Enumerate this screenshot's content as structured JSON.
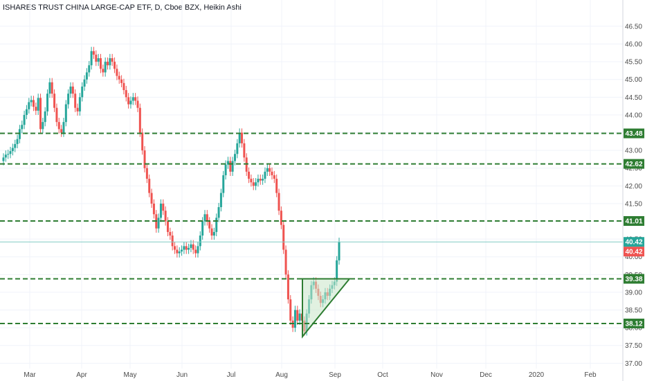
{
  "chart_data": {
    "type": "candlestick",
    "title": "ISHARES TRUST CHINA LARGE-CAP ETF, D, Cboe BZX, Heikin Ashi",
    "ylim": [
      36.85,
      46.85
    ],
    "y_ticks": [
      37.0,
      37.5,
      38.0,
      38.5,
      39.0,
      39.5,
      40.0,
      40.5,
      41.0,
      41.5,
      42.0,
      42.5,
      43.0,
      43.5,
      44.0,
      44.5,
      45.0,
      45.5,
      46.0,
      46.5
    ],
    "x_ticks": [
      "Mar",
      "Apr",
      "May",
      "Jun",
      "Jul",
      "Aug",
      "Sep",
      "Oct",
      "Nov",
      "Dec",
      "2020",
      "Feb"
    ],
    "colors": {
      "up": "#26a69a",
      "down": "#ef5350",
      "level_line": "#2e7d32",
      "price_line": "#80cbc4",
      "triangle": "#2e7d32",
      "triangle_fill": "#c8e6c9"
    },
    "levels": [
      43.48,
      42.62,
      41.01,
      39.38,
      38.12
    ],
    "level_labels": [
      "43.48",
      "42.62",
      "41.01",
      "39.38",
      "38.12"
    ],
    "last_price": 40.42,
    "last_price_label": "40.42",
    "last_price_label_2": "40.42",
    "triangle": [
      [
        "2019-08-12",
        39.38
      ],
      [
        "2019-09-05",
        39.38
      ],
      [
        "2019-08-13",
        37.75
      ]
    ],
    "close": [
      42.8,
      42.88,
      42.9,
      42.98,
      43.07,
      43.18,
      43.32,
      43.6,
      43.72,
      44.0,
      44.16,
      44.36,
      44.42,
      44.23,
      44.12,
      44.48,
      43.6,
      43.8,
      44.1,
      44.6,
      44.92,
      44.6,
      44.2,
      43.8,
      43.6,
      43.5,
      43.8,
      44.3,
      44.6,
      44.8,
      44.6,
      44.2,
      44.1,
      44.5,
      44.8,
      45.0,
      45.2,
      45.4,
      45.8,
      45.7,
      45.5,
      45.6,
      45.3,
      45.2,
      45.5,
      45.4,
      45.6,
      45.5,
      45.3,
      45.1,
      45.0,
      44.9,
      44.7,
      44.5,
      44.3,
      44.4,
      44.5,
      44.4,
      44.2,
      43.5,
      43.0,
      42.5,
      42.2,
      41.8,
      41.5,
      41.2,
      40.8,
      41.1,
      41.5,
      41.3,
      41.0,
      40.7,
      40.6,
      40.3,
      40.2,
      40.1,
      40.15,
      40.2,
      40.3,
      40.2,
      40.25,
      40.35,
      40.2,
      40.1,
      40.3,
      40.6,
      41.0,
      41.2,
      41.0,
      40.8,
      40.6,
      40.7,
      41.1,
      41.4,
      41.8,
      42.3,
      42.6,
      42.7,
      42.4,
      42.7,
      42.9,
      43.2,
      43.5,
      43.2,
      42.8,
      42.4,
      42.2,
      42.1,
      42.0,
      42.1,
      42.2,
      42.15,
      42.2,
      42.4,
      42.5,
      42.4,
      42.3,
      42.2,
      41.8,
      41.3,
      40.9,
      40.2,
      39.5,
      38.8,
      38.2,
      38.0,
      38.5,
      38.2,
      38.4,
      38.2,
      37.9,
      38.4,
      38.8,
      39.2,
      39.3,
      39.1,
      38.9,
      38.7,
      38.8,
      39.0,
      38.9,
      39.1,
      39.2,
      39.3,
      39.9,
      40.42
    ],
    "month_starts": [
      14,
      33,
      52,
      72,
      91,
      110,
      129,
      148,
      167,
      186,
      205,
      224
    ]
  }
}
